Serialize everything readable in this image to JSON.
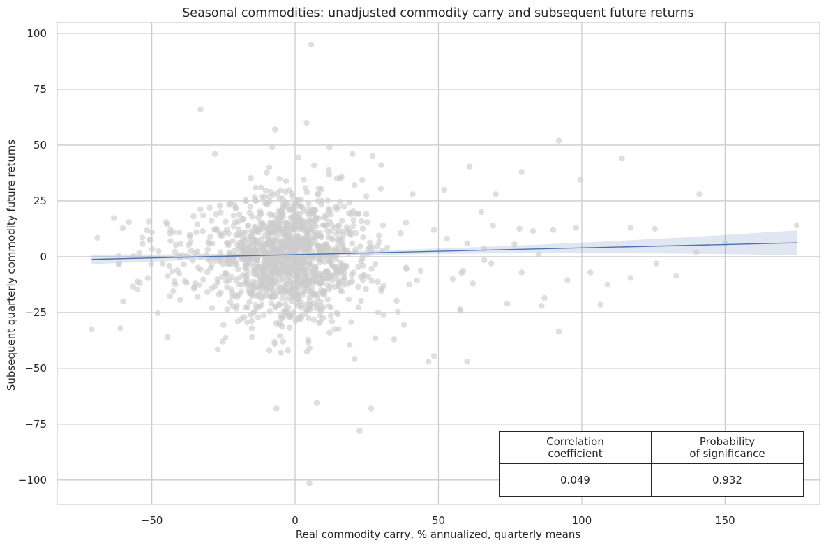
{
  "chart_data": {
    "type": "scatter",
    "title": "Seasonal commodities: unadjusted commodity carry and subsequent future returns",
    "xlabel": "Real commodity carry, % annualized, quarterly means",
    "ylabel": "Subsequent quarterly commodity future returns",
    "xlim": [
      -83,
      183
    ],
    "ylim": [
      -111,
      105
    ],
    "xticks": [
      -50,
      0,
      50,
      100,
      150
    ],
    "yticks": [
      100,
      75,
      50,
      25,
      0,
      -25,
      -50,
      -75,
      -100
    ],
    "xtick_labels": [
      "−50",
      "0",
      "50",
      "100",
      "150"
    ],
    "ytick_labels": [
      "100",
      "75",
      "50",
      "25",
      "0",
      "−25",
      "−50",
      "−75",
      "−100"
    ],
    "grid": true,
    "point_color": "#cccccc",
    "line_color": "#4c72b0",
    "band_color": "#4c72b0",
    "points_outliers": [
      [
        5.6,
        95
      ],
      [
        -33,
        66
      ],
      [
        92,
        52
      ],
      [
        114,
        44
      ],
      [
        99.5,
        34.5
      ],
      [
        141,
        28
      ],
      [
        4,
        60
      ],
      [
        -7,
        57
      ],
      [
        5,
        -101.5
      ],
      [
        22.5,
        -78
      ],
      [
        -6.5,
        -68
      ],
      [
        7.5,
        -65.5
      ],
      [
        26.5,
        -68
      ],
      [
        -71,
        -32.5
      ],
      [
        -61,
        -32
      ],
      [
        -44.5,
        -36
      ],
      [
        -69,
        8.5
      ],
      [
        -58,
        15.5
      ],
      [
        -45,
        15.5
      ],
      [
        -50,
        11
      ],
      [
        -60,
        -20
      ],
      [
        175,
        14
      ],
      [
        150,
        6
      ],
      [
        140,
        2
      ],
      [
        133,
        -8.5
      ],
      [
        126,
        -3
      ],
      [
        125.5,
        12.5
      ],
      [
        117,
        13
      ],
      [
        117,
        -9.5
      ],
      [
        109,
        -12.5
      ],
      [
        106.5,
        -21.5
      ],
      [
        103,
        -7
      ],
      [
        95,
        -10.5
      ],
      [
        92,
        -33.5
      ],
      [
        87,
        -18.5
      ],
      [
        86,
        -22
      ],
      [
        74,
        -21
      ],
      [
        57.5,
        -23.5
      ],
      [
        60,
        -47
      ],
      [
        48.5,
        -44.5
      ],
      [
        46.5,
        -47
      ],
      [
        28,
        -36.5
      ],
      [
        38,
        -30.5
      ],
      [
        -34,
        -18
      ],
      [
        -25,
        -30.5
      ],
      [
        -27,
        -41.5
      ],
      [
        -20,
        -29
      ],
      [
        -15,
        -36
      ],
      [
        -9,
        -42
      ],
      [
        -5,
        -43
      ],
      [
        -2.5,
        -42
      ],
      [
        5,
        -41
      ],
      [
        12,
        -34
      ],
      [
        19,
        -39.5
      ],
      [
        34.5,
        -37
      ],
      [
        20,
        46
      ],
      [
        27,
        45
      ],
      [
        -28,
        46
      ],
      [
        -8,
        49
      ],
      [
        12,
        49
      ],
      [
        30,
        41
      ],
      [
        52,
        30
      ],
      [
        41,
        28
      ],
      [
        65,
        20
      ],
      [
        79,
        38
      ],
      [
        70,
        28
      ],
      [
        83,
        11.5
      ],
      [
        90,
        12
      ],
      [
        98,
        13
      ],
      [
        76.5,
        5.5
      ],
      [
        79,
        -7
      ],
      [
        85,
        1
      ],
      [
        66,
        -1.5
      ],
      [
        60,
        6
      ],
      [
        55,
        -10
      ],
      [
        62,
        -12
      ]
    ],
    "regression": {
      "x": [
        -71,
        175
      ],
      "y": [
        -1.2,
        6.2
      ],
      "ci_halfwidth_left": 2.2,
      "ci_halfwidth_mid": 0.9,
      "ci_halfwidth_right": 5.6
    },
    "annotations": {
      "corr_header": [
        "Correlation",
        "coefficient"
      ],
      "prob_header": [
        "Probability",
        "of significance"
      ],
      "corr_value": "0.049",
      "prob_value": "0.932"
    }
  }
}
